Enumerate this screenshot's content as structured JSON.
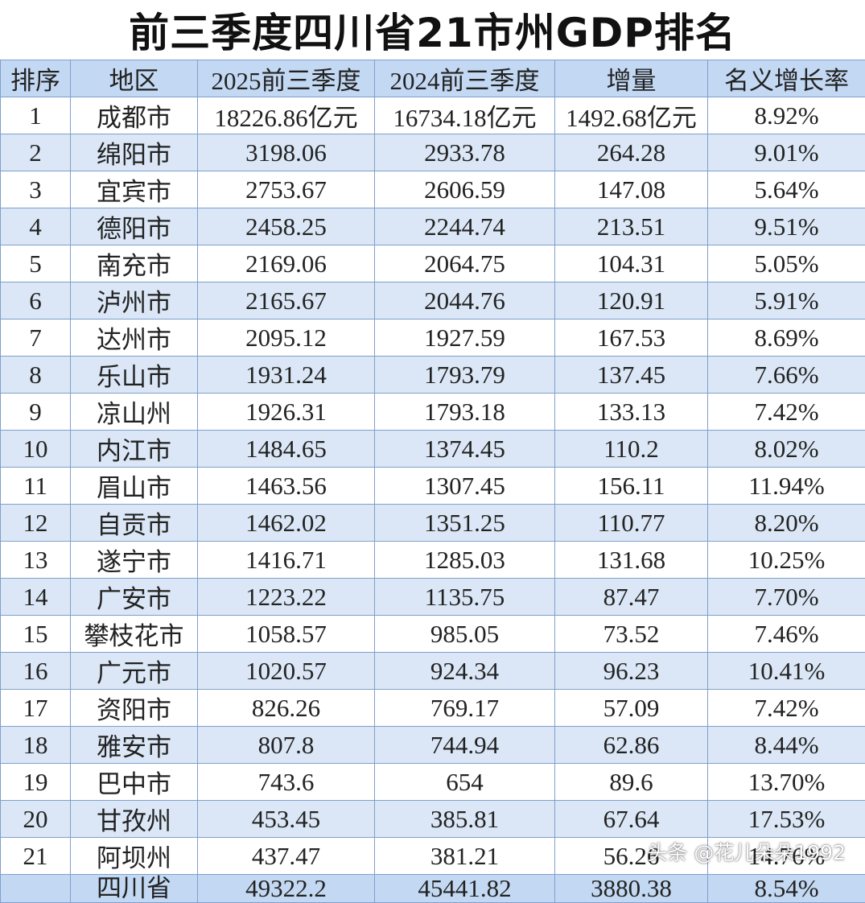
{
  "title": "前三季度四川省21市州GDP排名",
  "headers": [
    "排序",
    "地区",
    "2025前三季度",
    "2024前三季度",
    "增量",
    "名义增长率"
  ],
  "rows": [
    [
      "1",
      "成都市",
      "18226.86亿元",
      "16734.18亿元",
      "1492.68亿元",
      "8.92%"
    ],
    [
      "2",
      "绵阳市",
      "3198.06",
      "2933.78",
      "264.28",
      "9.01%"
    ],
    [
      "3",
      "宜宾市",
      "2753.67",
      "2606.59",
      "147.08",
      "5.64%"
    ],
    [
      "4",
      "德阳市",
      "2458.25",
      "2244.74",
      "213.51",
      "9.51%"
    ],
    [
      "5",
      "南充市",
      "2169.06",
      "2064.75",
      "104.31",
      "5.05%"
    ],
    [
      "6",
      "泸州市",
      "2165.67",
      "2044.76",
      "120.91",
      "5.91%"
    ],
    [
      "7",
      "达州市",
      "2095.12",
      "1927.59",
      "167.53",
      "8.69%"
    ],
    [
      "8",
      "乐山市",
      "1931.24",
      "1793.79",
      "137.45",
      "7.66%"
    ],
    [
      "9",
      "凉山州",
      "1926.31",
      "1793.18",
      "133.13",
      "7.42%"
    ],
    [
      "10",
      "内江市",
      "1484.65",
      "1374.45",
      "110.2",
      "8.02%"
    ],
    [
      "11",
      "眉山市",
      "1463.56",
      "1307.45",
      "156.11",
      "11.94%"
    ],
    [
      "12",
      "自贡市",
      "1462.02",
      "1351.25",
      "110.77",
      "8.20%"
    ],
    [
      "13",
      "遂宁市",
      "1416.71",
      "1285.03",
      "131.68",
      "10.25%"
    ],
    [
      "14",
      "广安市",
      "1223.22",
      "1135.75",
      "87.47",
      "7.70%"
    ],
    [
      "15",
      "攀枝花市",
      "1058.57",
      "985.05",
      "73.52",
      "7.46%"
    ],
    [
      "16",
      "广元市",
      "1020.57",
      "924.34",
      "96.23",
      "10.41%"
    ],
    [
      "17",
      "资阳市",
      "826.26",
      "769.17",
      "57.09",
      "7.42%"
    ],
    [
      "18",
      "雅安市",
      "807.8",
      "744.94",
      "62.86",
      "8.44%"
    ],
    [
      "19",
      "巴中市",
      "743.6",
      "654",
      "89.6",
      "13.70%"
    ],
    [
      "20",
      "甘孜州",
      "453.45",
      "385.81",
      "67.64",
      "17.53%"
    ],
    [
      "21",
      "阿坝州",
      "437.47",
      "381.21",
      "56.26",
      "14.76%"
    ]
  ],
  "total": [
    "",
    "四川省",
    "49322.2",
    "45441.82",
    "3880.38",
    "8.54%"
  ],
  "watermark": "头条 @花儿朵朵1992",
  "colors": {
    "header_bg": "#c3d8f2",
    "stripe_bg": "#dbe7f6",
    "border": "#7f9fcc"
  }
}
